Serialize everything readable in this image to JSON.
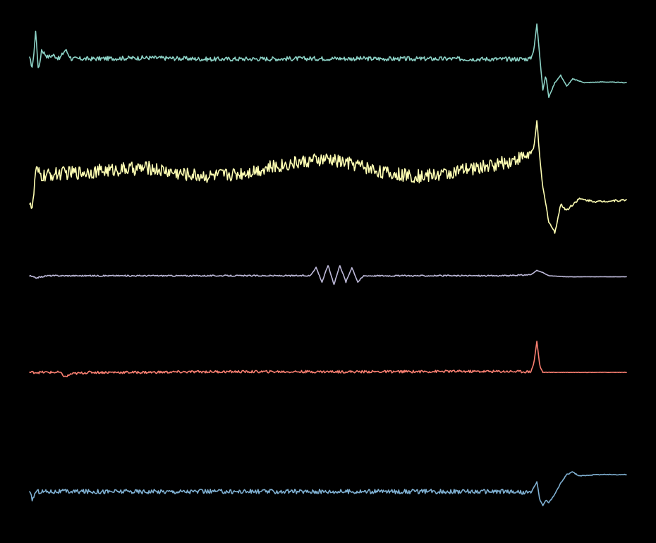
{
  "background": "#000000",
  "chart_data": {
    "type": "line",
    "layout": "stacked",
    "grid": false,
    "legend": "none",
    "axes_visible": false,
    "x_range": [
      0,
      100
    ],
    "y_range": [
      -1,
      1
    ],
    "title": "",
    "xlabel": "",
    "ylabel": "",
    "series": [
      {
        "color": "#8dd3c7",
        "description_points": [
          [
            0,
            0.05
          ],
          [
            0.5,
            -0.2
          ],
          [
            1,
            0.8
          ],
          [
            1.5,
            -0.3
          ],
          [
            2,
            0.3
          ],
          [
            3,
            0.1
          ],
          [
            4,
            0.15
          ],
          [
            5,
            0.05
          ],
          [
            6,
            0.3
          ],
          [
            7,
            0.05
          ],
          [
            10,
            0.05
          ],
          [
            20,
            0.08
          ],
          [
            30,
            0.04
          ],
          [
            40,
            0.05
          ],
          [
            50,
            0.06
          ],
          [
            60,
            0.05
          ],
          [
            70,
            0.05
          ],
          [
            80,
            0.04
          ],
          [
            84,
            0.05
          ],
          [
            84.5,
            0.3
          ],
          [
            85,
            1.0
          ],
          [
            85.5,
            0.1
          ],
          [
            86,
            -0.8
          ],
          [
            86.5,
            -0.4
          ],
          [
            87,
            -1.0
          ],
          [
            88,
            -0.6
          ],
          [
            89,
            -0.4
          ],
          [
            90,
            -0.7
          ],
          [
            91,
            -0.5
          ],
          [
            93,
            -0.6
          ],
          [
            96,
            -0.58
          ],
          [
            100,
            -0.6
          ]
        ],
        "noise": 0.06
      },
      {
        "color": "#ffffb3",
        "description_points": [
          [
            0,
            -0.4
          ],
          [
            0.5,
            -0.6
          ],
          [
            1,
            0.1
          ],
          [
            2,
            0.0
          ],
          [
            5,
            0.05
          ],
          [
            10,
            0.08
          ],
          [
            15,
            0.12
          ],
          [
            20,
            0.15
          ],
          [
            25,
            0.05
          ],
          [
            30,
            0.0
          ],
          [
            35,
            0.05
          ],
          [
            40,
            0.15
          ],
          [
            45,
            0.25
          ],
          [
            50,
            0.3
          ],
          [
            55,
            0.2
          ],
          [
            60,
            0.05
          ],
          [
            65,
            0.0
          ],
          [
            70,
            0.05
          ],
          [
            75,
            0.15
          ],
          [
            80,
            0.25
          ],
          [
            84,
            0.4
          ],
          [
            84.5,
            0.5
          ],
          [
            85,
            1.0
          ],
          [
            85.5,
            0.3
          ],
          [
            86,
            -0.2
          ],
          [
            87,
            -0.8
          ],
          [
            88,
            -1.0
          ],
          [
            89,
            -0.5
          ],
          [
            90,
            -0.6
          ],
          [
            92,
            -0.4
          ],
          [
            95,
            -0.45
          ],
          [
            100,
            -0.42
          ]
        ],
        "noise": 0.12
      },
      {
        "color": "#bebada",
        "description_points": [
          [
            0,
            0.0
          ],
          [
            1,
            -0.1
          ],
          [
            2,
            -0.05
          ],
          [
            3,
            0.0
          ],
          [
            10,
            0.0
          ],
          [
            20,
            0.0
          ],
          [
            30,
            0.0
          ],
          [
            40,
            0.0
          ],
          [
            47,
            0.0
          ],
          [
            48,
            0.4
          ],
          [
            49,
            -0.3
          ],
          [
            50,
            0.5
          ],
          [
            51,
            -0.4
          ],
          [
            52,
            0.5
          ],
          [
            53,
            -0.3
          ],
          [
            54,
            0.4
          ],
          [
            55,
            -0.3
          ],
          [
            56,
            0.0
          ],
          [
            60,
            0.0
          ],
          [
            70,
            0.0
          ],
          [
            80,
            0.0
          ],
          [
            84,
            0.05
          ],
          [
            85,
            0.25
          ],
          [
            86,
            0.15
          ],
          [
            87,
            0.0
          ],
          [
            90,
            -0.05
          ],
          [
            100,
            -0.05
          ]
        ],
        "noise": 0.03
      },
      {
        "color": "#fb8072",
        "description_points": [
          [
            0,
            0.0
          ],
          [
            5,
            0.0
          ],
          [
            6,
            -0.15
          ],
          [
            7,
            -0.05
          ],
          [
            10,
            0.0
          ],
          [
            20,
            0.0
          ],
          [
            30,
            0.02
          ],
          [
            40,
            0.02
          ],
          [
            50,
            0.02
          ],
          [
            60,
            0.02
          ],
          [
            70,
            0.03
          ],
          [
            80,
            0.03
          ],
          [
            84,
            0.02
          ],
          [
            84.5,
            0.3
          ],
          [
            85,
            1.0
          ],
          [
            85.5,
            0.2
          ],
          [
            86,
            0.0
          ],
          [
            90,
            0.0
          ],
          [
            100,
            0.0
          ]
        ],
        "noise": 0.04
      },
      {
        "color": "#80b1d3",
        "description_points": [
          [
            0,
            -0.05
          ],
          [
            0.5,
            -0.3
          ],
          [
            1,
            0.0
          ],
          [
            5,
            0.0
          ],
          [
            10,
            0.0
          ],
          [
            20,
            0.0
          ],
          [
            30,
            0.0
          ],
          [
            40,
            0.0
          ],
          [
            50,
            0.0
          ],
          [
            60,
            0.0
          ],
          [
            70,
            0.0
          ],
          [
            80,
            0.0
          ],
          [
            84,
            -0.05
          ],
          [
            85,
            0.35
          ],
          [
            85.5,
            -0.3
          ],
          [
            86,
            -0.5
          ],
          [
            86.5,
            -0.3
          ],
          [
            87,
            -0.4
          ],
          [
            88,
            -0.1
          ],
          [
            89,
            0.3
          ],
          [
            90,
            0.6
          ],
          [
            91,
            0.7
          ],
          [
            92,
            0.55
          ],
          [
            95,
            0.6
          ],
          [
            100,
            0.6
          ]
        ],
        "noise": 0.08
      }
    ]
  }
}
